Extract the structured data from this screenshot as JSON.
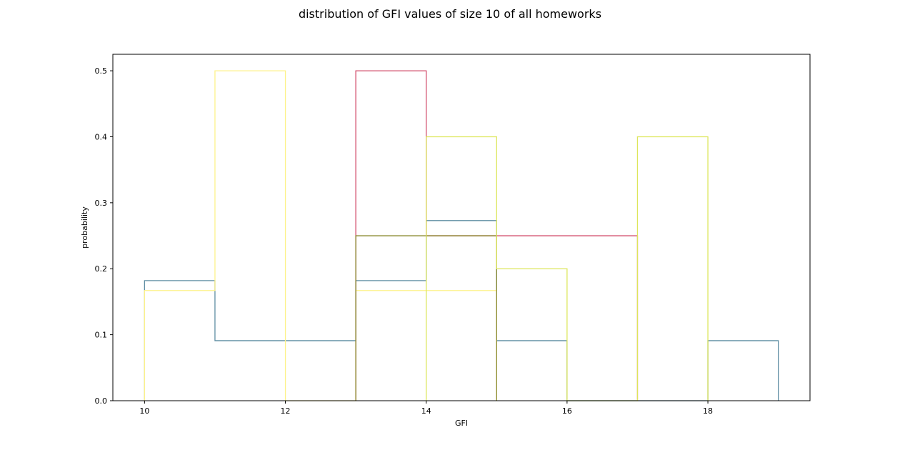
{
  "chart_data": {
    "type": "histogram-step",
    "title": "distribution of GFI values of size 10 of all homeworks",
    "xlabel": "GFI",
    "ylabel": "probability",
    "xlim": [
      9.55,
      19.45
    ],
    "ylim": [
      0,
      0.525
    ],
    "xticks": [
      10,
      12,
      14,
      16,
      18
    ],
    "yticks": [
      0.0,
      0.1,
      0.2,
      0.3,
      0.4,
      0.5
    ],
    "ytick_labels": [
      "0.0",
      "0.1",
      "0.2",
      "0.3",
      "0.4",
      "0.5"
    ],
    "grid": false,
    "series": [
      {
        "color": "#5f8ea3",
        "bins": [
          10,
          11,
          12,
          13,
          14,
          15,
          16,
          17,
          18,
          19
        ],
        "values": [
          0.182,
          0.091,
          0.091,
          0.182,
          0.273,
          0.091,
          0.0,
          0.0,
          0.091
        ]
      },
      {
        "color": "#fdf28a",
        "bins": [
          10,
          11,
          12,
          13,
          14,
          15
        ],
        "values": [
          0.167,
          0.5,
          0.0,
          0.167,
          0.167
        ]
      },
      {
        "color": "#d3506f",
        "bins": [
          13,
          14,
          15,
          16,
          17
        ],
        "values": [
          0.5,
          0.25,
          0.25,
          0.25
        ]
      },
      {
        "color": "#8a8a30",
        "bins": [
          13,
          14,
          15
        ],
        "values": [
          0.25,
          0.25
        ]
      },
      {
        "color": "#dde65a",
        "bins": [
          14,
          15,
          16,
          17,
          18
        ],
        "values": [
          0.4,
          0.2,
          0.0,
          0.4
        ]
      }
    ]
  }
}
